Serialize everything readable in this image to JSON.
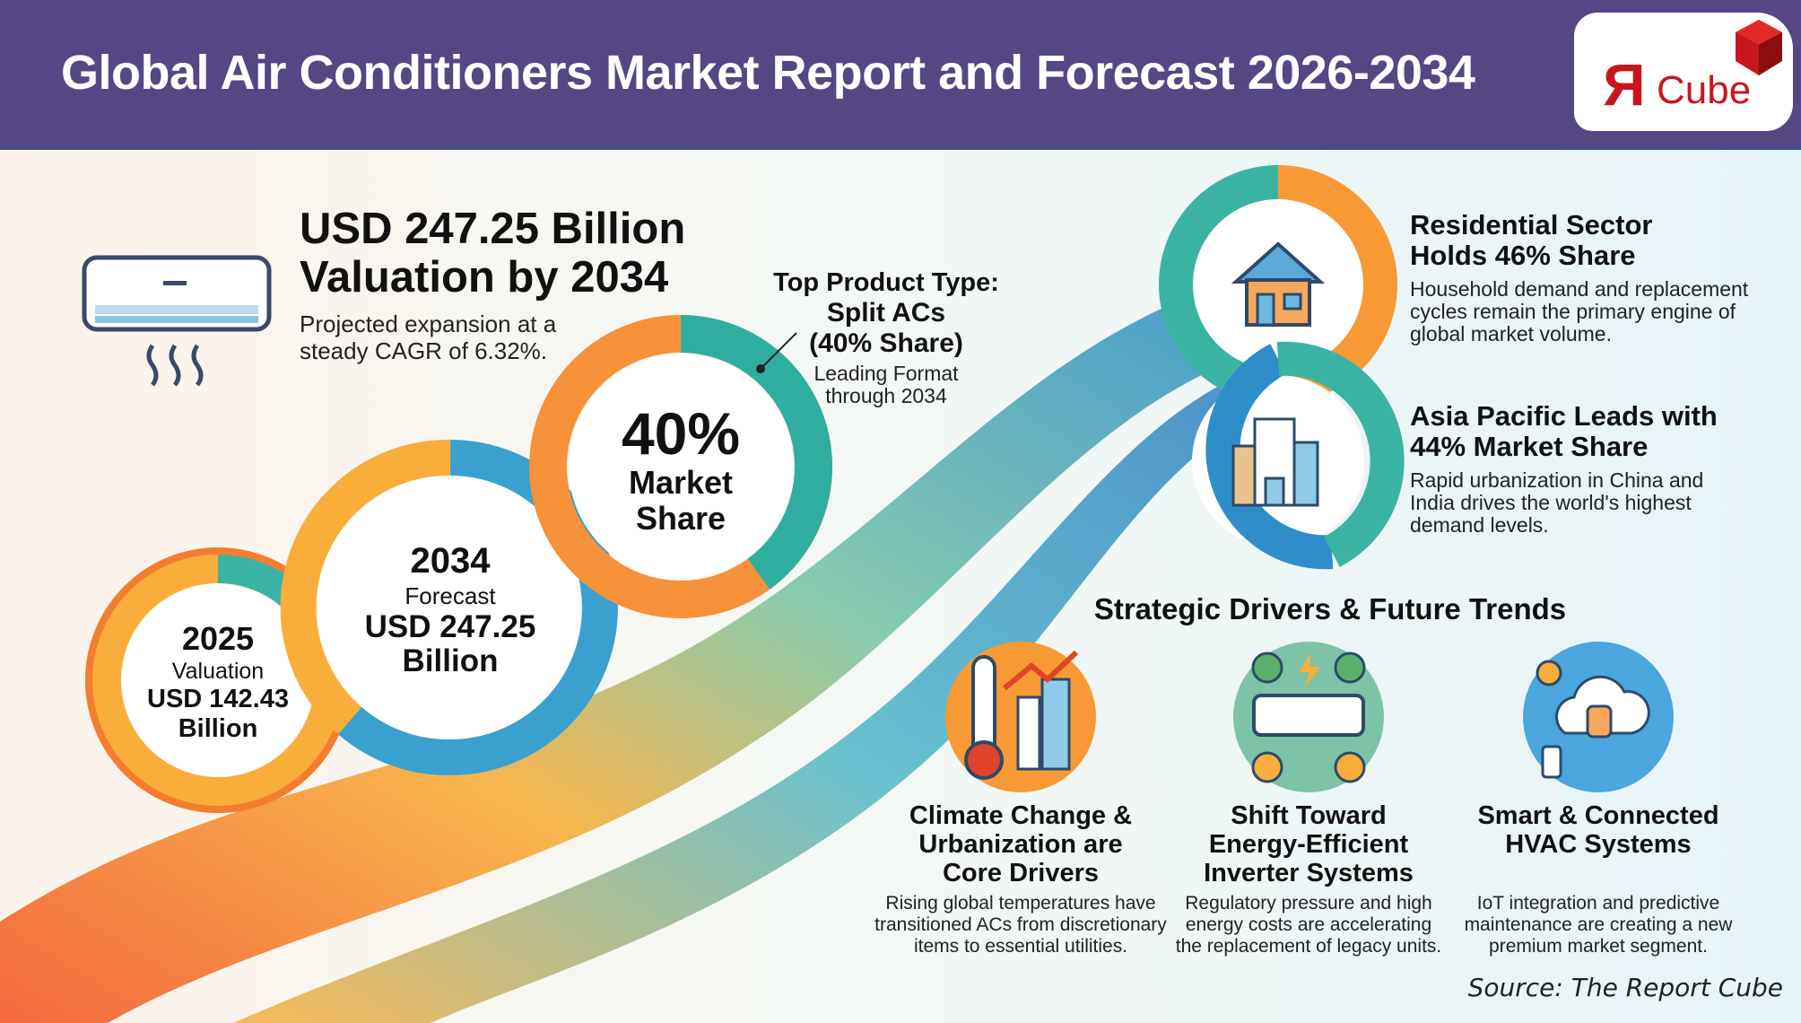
{
  "header": {
    "title": "Global Air Conditioners Market Report and Forecast 2026-2034",
    "logo_text": "ЯCube"
  },
  "headline": {
    "title_line1": "USD 247.25 Billion",
    "title_line2": "Valuation by 2034",
    "sub_line1": "Projected expansion at a",
    "sub_line2": "steady CAGR of 6.32%."
  },
  "product": {
    "label_line1": "Top Product Type:",
    "label_line2": "Split ACs",
    "label_line3": "(40% Share)",
    "note_line1": "Leading Format",
    "note_line2": "through 2034",
    "donut_value": "40%",
    "donut_line1": "Market",
    "donut_line2": "Share",
    "share_percent": 40
  },
  "forecast": {
    "year": "2034",
    "label": "Forecast",
    "value_line1": "USD 247.25",
    "value_line2": "Billion"
  },
  "valuation": {
    "year": "2025",
    "label": "Valuation",
    "value_line1": "USD 142.43",
    "value_line2": "Billion"
  },
  "residential": {
    "title_line1": "Residential Sector",
    "title_line2": "Holds 46% Share",
    "desc_line1": "Household demand and replacement",
    "desc_line2": "cycles remain the primary engine of",
    "desc_line3": "global market volume.",
    "share_percent": 46
  },
  "asia": {
    "title_line1": "Asia Pacific Leads with",
    "title_line2": "44% Market Share",
    "desc_line1": "Rapid urbanization in China and",
    "desc_line2": "India drives the world's highest",
    "desc_line3": "demand levels.",
    "share_percent": 44
  },
  "drivers": {
    "heading": "Strategic Drivers & Future Trends",
    "items": [
      {
        "icon": "thermometer-city-icon",
        "t1": "Climate Change &",
        "t2": "Urbanization are",
        "t3": "Core Drivers",
        "d1": "Rising global temperatures have",
        "d2": "transitioned ACs from discretionary",
        "d3": "items to essential utilities."
      },
      {
        "icon": "energy-efficient-ac-icon",
        "t1": "Shift Toward",
        "t2": "Energy-Efficient",
        "t3": "Inverter Systems",
        "d1": "Regulatory pressure and high",
        "d2": "energy costs are accelerating",
        "d3": "the replacement of legacy units."
      },
      {
        "icon": "smart-cloud-network-icon",
        "t1": "Smart & Connected",
        "t2": "HVAC Systems",
        "t3": "",
        "d1": "IoT integration and predictive",
        "d2": "maintenance are creating a new",
        "d3": "premium market segment."
      }
    ]
  },
  "source": "Source: The Report Cube",
  "colors": {
    "header": "#554684",
    "orange": "#f47d30",
    "amber": "#f9ae3b",
    "teal": "#3bb3a3",
    "blue": "#2f8ec9",
    "logo_red": "#c8161d"
  }
}
